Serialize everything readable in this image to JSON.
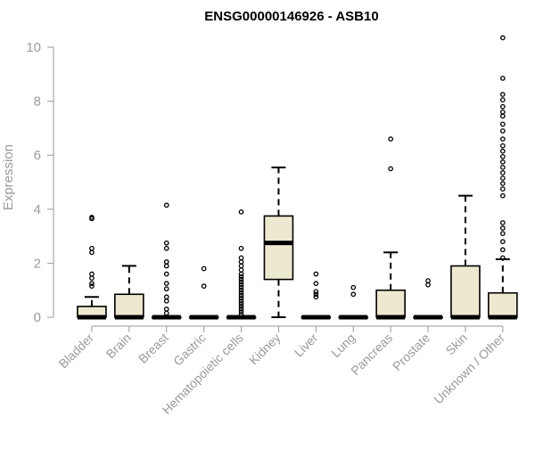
{
  "chart_data": {
    "type": "boxplot",
    "title": "ENSG00000146926 - ASB10",
    "ylabel": "Expression",
    "xlabel": "",
    "ylim": [
      0,
      10.5
    ],
    "yticks": [
      0,
      2,
      4,
      6,
      8,
      10
    ],
    "grid": false,
    "box_fill": "#ede8d0",
    "categories": [
      "Bladder",
      "Brain",
      "Breast",
      "Gastric",
      "Hematopoietic cells",
      "Kidney",
      "Liver",
      "Lung",
      "Pancreas",
      "Prostate",
      "Skin",
      "Unknown / Other"
    ],
    "boxes": [
      {
        "category": "Bladder",
        "whisker_low": 0,
        "q1": 0,
        "median": 0,
        "q3": 0.4,
        "whisker_high": 0.75,
        "outliers": [
          1.15,
          1.25,
          1.45,
          1.6,
          2.4,
          2.55,
          3.65,
          3.7
        ]
      },
      {
        "category": "Brain",
        "whisker_low": 0,
        "q1": 0,
        "median": 0,
        "q3": 0.85,
        "whisker_high": 1.9,
        "outliers": []
      },
      {
        "category": "Breast",
        "whisker_low": 0,
        "q1": 0,
        "median": 0,
        "q3": 0,
        "whisker_high": 0,
        "outliers": [
          0.15,
          0.3,
          0.6,
          0.75,
          1.05,
          1.25,
          1.6,
          1.9,
          2.05,
          2.55,
          2.75,
          4.15
        ]
      },
      {
        "category": "Gastric",
        "whisker_low": 0,
        "q1": 0,
        "median": 0,
        "q3": 0,
        "whisker_high": 0,
        "outliers": [
          1.15,
          1.8
        ]
      },
      {
        "category": "Hematopoietic cells",
        "whisker_low": 0,
        "q1": 0,
        "median": 0,
        "q3": 0,
        "whisker_high": 0,
        "outliers": [
          0.1,
          0.2,
          0.3,
          0.4,
          0.5,
          0.6,
          0.7,
          0.8,
          0.9,
          1.0,
          1.1,
          1.2,
          1.3,
          1.4,
          1.5,
          1.6,
          1.75,
          1.9,
          2.05,
          2.2,
          2.55,
          3.9
        ]
      },
      {
        "category": "Kidney",
        "whisker_low": 0,
        "q1": 1.4,
        "median": 2.75,
        "q3": 3.75,
        "whisker_high": 5.55,
        "outliers": []
      },
      {
        "category": "Liver",
        "whisker_low": 0,
        "q1": 0,
        "median": 0,
        "q3": 0,
        "whisker_high": 0,
        "outliers": [
          0.75,
          0.85,
          0.95,
          1.25,
          1.6
        ]
      },
      {
        "category": "Lung",
        "whisker_low": 0,
        "q1": 0,
        "median": 0,
        "q3": 0,
        "whisker_high": 0,
        "outliers": [
          0.85,
          1.1
        ]
      },
      {
        "category": "Pancreas",
        "whisker_low": 0,
        "q1": 0,
        "median": 0,
        "q3": 1.0,
        "whisker_high": 2.4,
        "outliers": [
          5.5,
          6.6
        ]
      },
      {
        "category": "Prostate",
        "whisker_low": 0,
        "q1": 0,
        "median": 0,
        "q3": 0,
        "whisker_high": 0,
        "outliers": [
          1.2,
          1.35
        ]
      },
      {
        "category": "Skin",
        "whisker_low": 0,
        "q1": 0,
        "median": 0,
        "q3": 1.9,
        "whisker_high": 4.5,
        "outliers": []
      },
      {
        "category": "Unknown / Other",
        "whisker_low": 0,
        "q1": 0,
        "median": 0,
        "q3": 0.9,
        "whisker_high": 2.15,
        "outliers": [
          2.2,
          2.5,
          2.8,
          3.1,
          3.3,
          3.5,
          4.5,
          4.75,
          4.95,
          5.15,
          5.35,
          5.55,
          5.75,
          5.95,
          6.15,
          6.35,
          6.6,
          6.9,
          7.15,
          7.45,
          7.6,
          7.8,
          8.05,
          8.25,
          8.85,
          10.35
        ]
      }
    ]
  }
}
